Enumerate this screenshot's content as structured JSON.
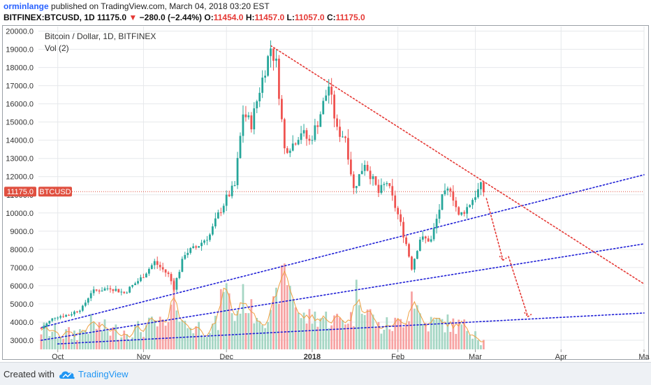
{
  "header": {
    "user": "orminlange",
    "published_text": "published on TradingView.com, March 04, 2018 03:20 EST",
    "symbol": "BITFINEX:BTCUSD, 1D",
    "last": "11175.0",
    "arrow": "▼",
    "change": "−280.0 (−2.44%)",
    "open_label": "O:",
    "open": "11454.0",
    "high_label": "H:",
    "high": "11457.0",
    "low_label": "L:",
    "low": "11057.0",
    "close_label": "C:",
    "close": "11175.0"
  },
  "legend": {
    "title": "Bitcoin / Dollar, 1D, BITFINEX",
    "volume": "Vol (2)"
  },
  "price_tag": {
    "value": "11175.0",
    "label": "BTCUSD"
  },
  "footer": {
    "created": "Created with",
    "brand": "TradingView"
  },
  "colors": {
    "up": "#26a69a",
    "down": "#ef5350",
    "vol_up": "#a5d6c4",
    "vol_down": "#f7a3a3",
    "trend_blue": "#1f1fd6",
    "trend_red": "#e53935",
    "tag": "#e05040"
  },
  "chart_data": {
    "type": "candlestick",
    "title": "Bitcoin / Dollar, 1D, BITFINEX",
    "ylim": [
      2500,
      20250
    ],
    "yticks": [
      3000,
      4000,
      5000,
      6000,
      7000,
      8000,
      9000,
      10000,
      11000,
      12000,
      13000,
      14000,
      15000,
      16000,
      17000,
      18000,
      19000,
      20000
    ],
    "xlim": [
      "2017-09-24",
      "2018-05-01"
    ],
    "xticks": [
      {
        "date": "2017-10-01",
        "label": "Oct"
      },
      {
        "date": "2017-11-01",
        "label": "Nov"
      },
      {
        "date": "2017-12-01",
        "label": "Dec"
      },
      {
        "date": "2018-01-01",
        "label": "2018"
      },
      {
        "date": "2018-02-01",
        "label": "Feb"
      },
      {
        "date": "2018-03-01",
        "label": "Mar"
      },
      {
        "date": "2018-04-01",
        "label": "Apr"
      },
      {
        "date": "2018-05-01",
        "label": "Ma"
      }
    ],
    "grid": true,
    "last_price": 11175.0,
    "price_series": [
      [
        "2017-09-25",
        3650
      ],
      [
        "2017-09-30",
        4300
      ],
      [
        "2017-10-05",
        4400
      ],
      [
        "2017-10-10",
        4800
      ],
      [
        "2017-10-13",
        5650
      ],
      [
        "2017-10-20",
        5900
      ],
      [
        "2017-10-25",
        5600
      ],
      [
        "2017-10-31",
        6400
      ],
      [
        "2017-11-05",
        7300
      ],
      [
        "2017-11-10",
        6600
      ],
      [
        "2017-11-12",
        5900
      ],
      [
        "2017-11-16",
        7800
      ],
      [
        "2017-11-20",
        8100
      ],
      [
        "2017-11-25",
        8800
      ],
      [
        "2017-11-28",
        9900
      ],
      [
        "2017-12-01",
        10800
      ],
      [
        "2017-12-04",
        11500
      ],
      [
        "2017-12-07",
        15500
      ],
      [
        "2017-12-10",
        14900
      ],
      [
        "2017-12-13",
        16800
      ],
      [
        "2017-12-17",
        19100
      ],
      [
        "2017-12-19",
        18200
      ],
      [
        "2017-12-22",
        13500
      ],
      [
        "2017-12-25",
        13800
      ],
      [
        "2017-12-28",
        14500
      ],
      [
        "2017-12-31",
        13900
      ],
      [
        "2018-01-03",
        15000
      ],
      [
        "2018-01-07",
        17000
      ],
      [
        "2018-01-10",
        14500
      ],
      [
        "2018-01-13",
        14200
      ],
      [
        "2018-01-16",
        11300
      ],
      [
        "2018-01-20",
        12800
      ],
      [
        "2018-01-25",
        11100
      ],
      [
        "2018-01-28",
        11700
      ],
      [
        "2018-02-01",
        9900
      ],
      [
        "2018-02-04",
        8300
      ],
      [
        "2018-02-06",
        7000
      ],
      [
        "2018-02-09",
        8600
      ],
      [
        "2018-02-13",
        8500
      ],
      [
        "2018-02-17",
        10800
      ],
      [
        "2018-02-20",
        11400
      ],
      [
        "2018-02-23",
        9800
      ],
      [
        "2018-02-26",
        10300
      ],
      [
        "2018-03-01",
        11000
      ],
      [
        "2018-03-03",
        11450
      ],
      [
        "2018-03-04",
        11175
      ]
    ],
    "volume_series": [
      [
        "2017-09-25",
        3600
      ],
      [
        "2017-10-05",
        3300
      ],
      [
        "2017-10-10",
        3500
      ],
      [
        "2017-10-13",
        3900
      ],
      [
        "2017-10-20",
        3500
      ],
      [
        "2017-10-31",
        3600
      ],
      [
        "2017-11-05",
        3900
      ],
      [
        "2017-11-10",
        3700
      ],
      [
        "2017-11-12",
        5600
      ],
      [
        "2017-11-16",
        3800
      ],
      [
        "2017-11-25",
        3700
      ],
      [
        "2017-11-28",
        3900
      ],
      [
        "2017-11-30",
        6300
      ],
      [
        "2017-12-04",
        4200
      ],
      [
        "2017-12-07",
        5400
      ],
      [
        "2017-12-10",
        4600
      ],
      [
        "2017-12-17",
        4200
      ],
      [
        "2017-12-22",
        6800
      ],
      [
        "2017-12-28",
        4200
      ],
      [
        "2018-01-03",
        4300
      ],
      [
        "2018-01-10",
        4100
      ],
      [
        "2018-01-16",
        4300
      ],
      [
        "2018-01-17",
        5700
      ],
      [
        "2018-01-25",
        3700
      ],
      [
        "2018-02-01",
        3900
      ],
      [
        "2018-02-05",
        4500
      ],
      [
        "2018-02-06",
        5700
      ],
      [
        "2018-02-10",
        3900
      ],
      [
        "2018-02-17",
        4000
      ],
      [
        "2018-02-25",
        3700
      ],
      [
        "2018-03-01",
        3600
      ],
      [
        "2018-03-04",
        2900
      ]
    ],
    "volume_scale": "overlay, in price-axis units",
    "trendlines": [
      {
        "name": "blue support (upper)",
        "style": "dotted",
        "color": "#1f1fd6",
        "points": [
          [
            "2017-09-25",
            3700
          ],
          [
            "2018-05-01",
            12100
          ]
        ]
      },
      {
        "name": "blue support (middle)",
        "style": "dotted",
        "color": "#1f1fd6",
        "points": [
          [
            "2017-09-25",
            3000
          ],
          [
            "2018-05-01",
            8300
          ]
        ]
      },
      {
        "name": "blue support (lower)",
        "style": "dotted",
        "color": "#1f1fd6",
        "points": [
          [
            "2017-10-01",
            2800
          ],
          [
            "2018-05-01",
            4500
          ]
        ]
      },
      {
        "name": "red resistance",
        "style": "dotted",
        "color": "#e53935",
        "points": [
          [
            "2017-12-17",
            19200
          ],
          [
            "2018-05-01",
            6100
          ]
        ]
      },
      {
        "name": "red projection 1",
        "style": "dotted",
        "color": "#e53935",
        "points": [
          [
            "2018-03-05",
            10800
          ],
          [
            "2018-03-11",
            7400
          ]
        ]
      },
      {
        "name": "red projection 2",
        "style": "dotted",
        "color": "#e53935",
        "points": [
          [
            "2018-03-13",
            7600
          ],
          [
            "2018-03-20",
            4300
          ]
        ]
      }
    ]
  }
}
